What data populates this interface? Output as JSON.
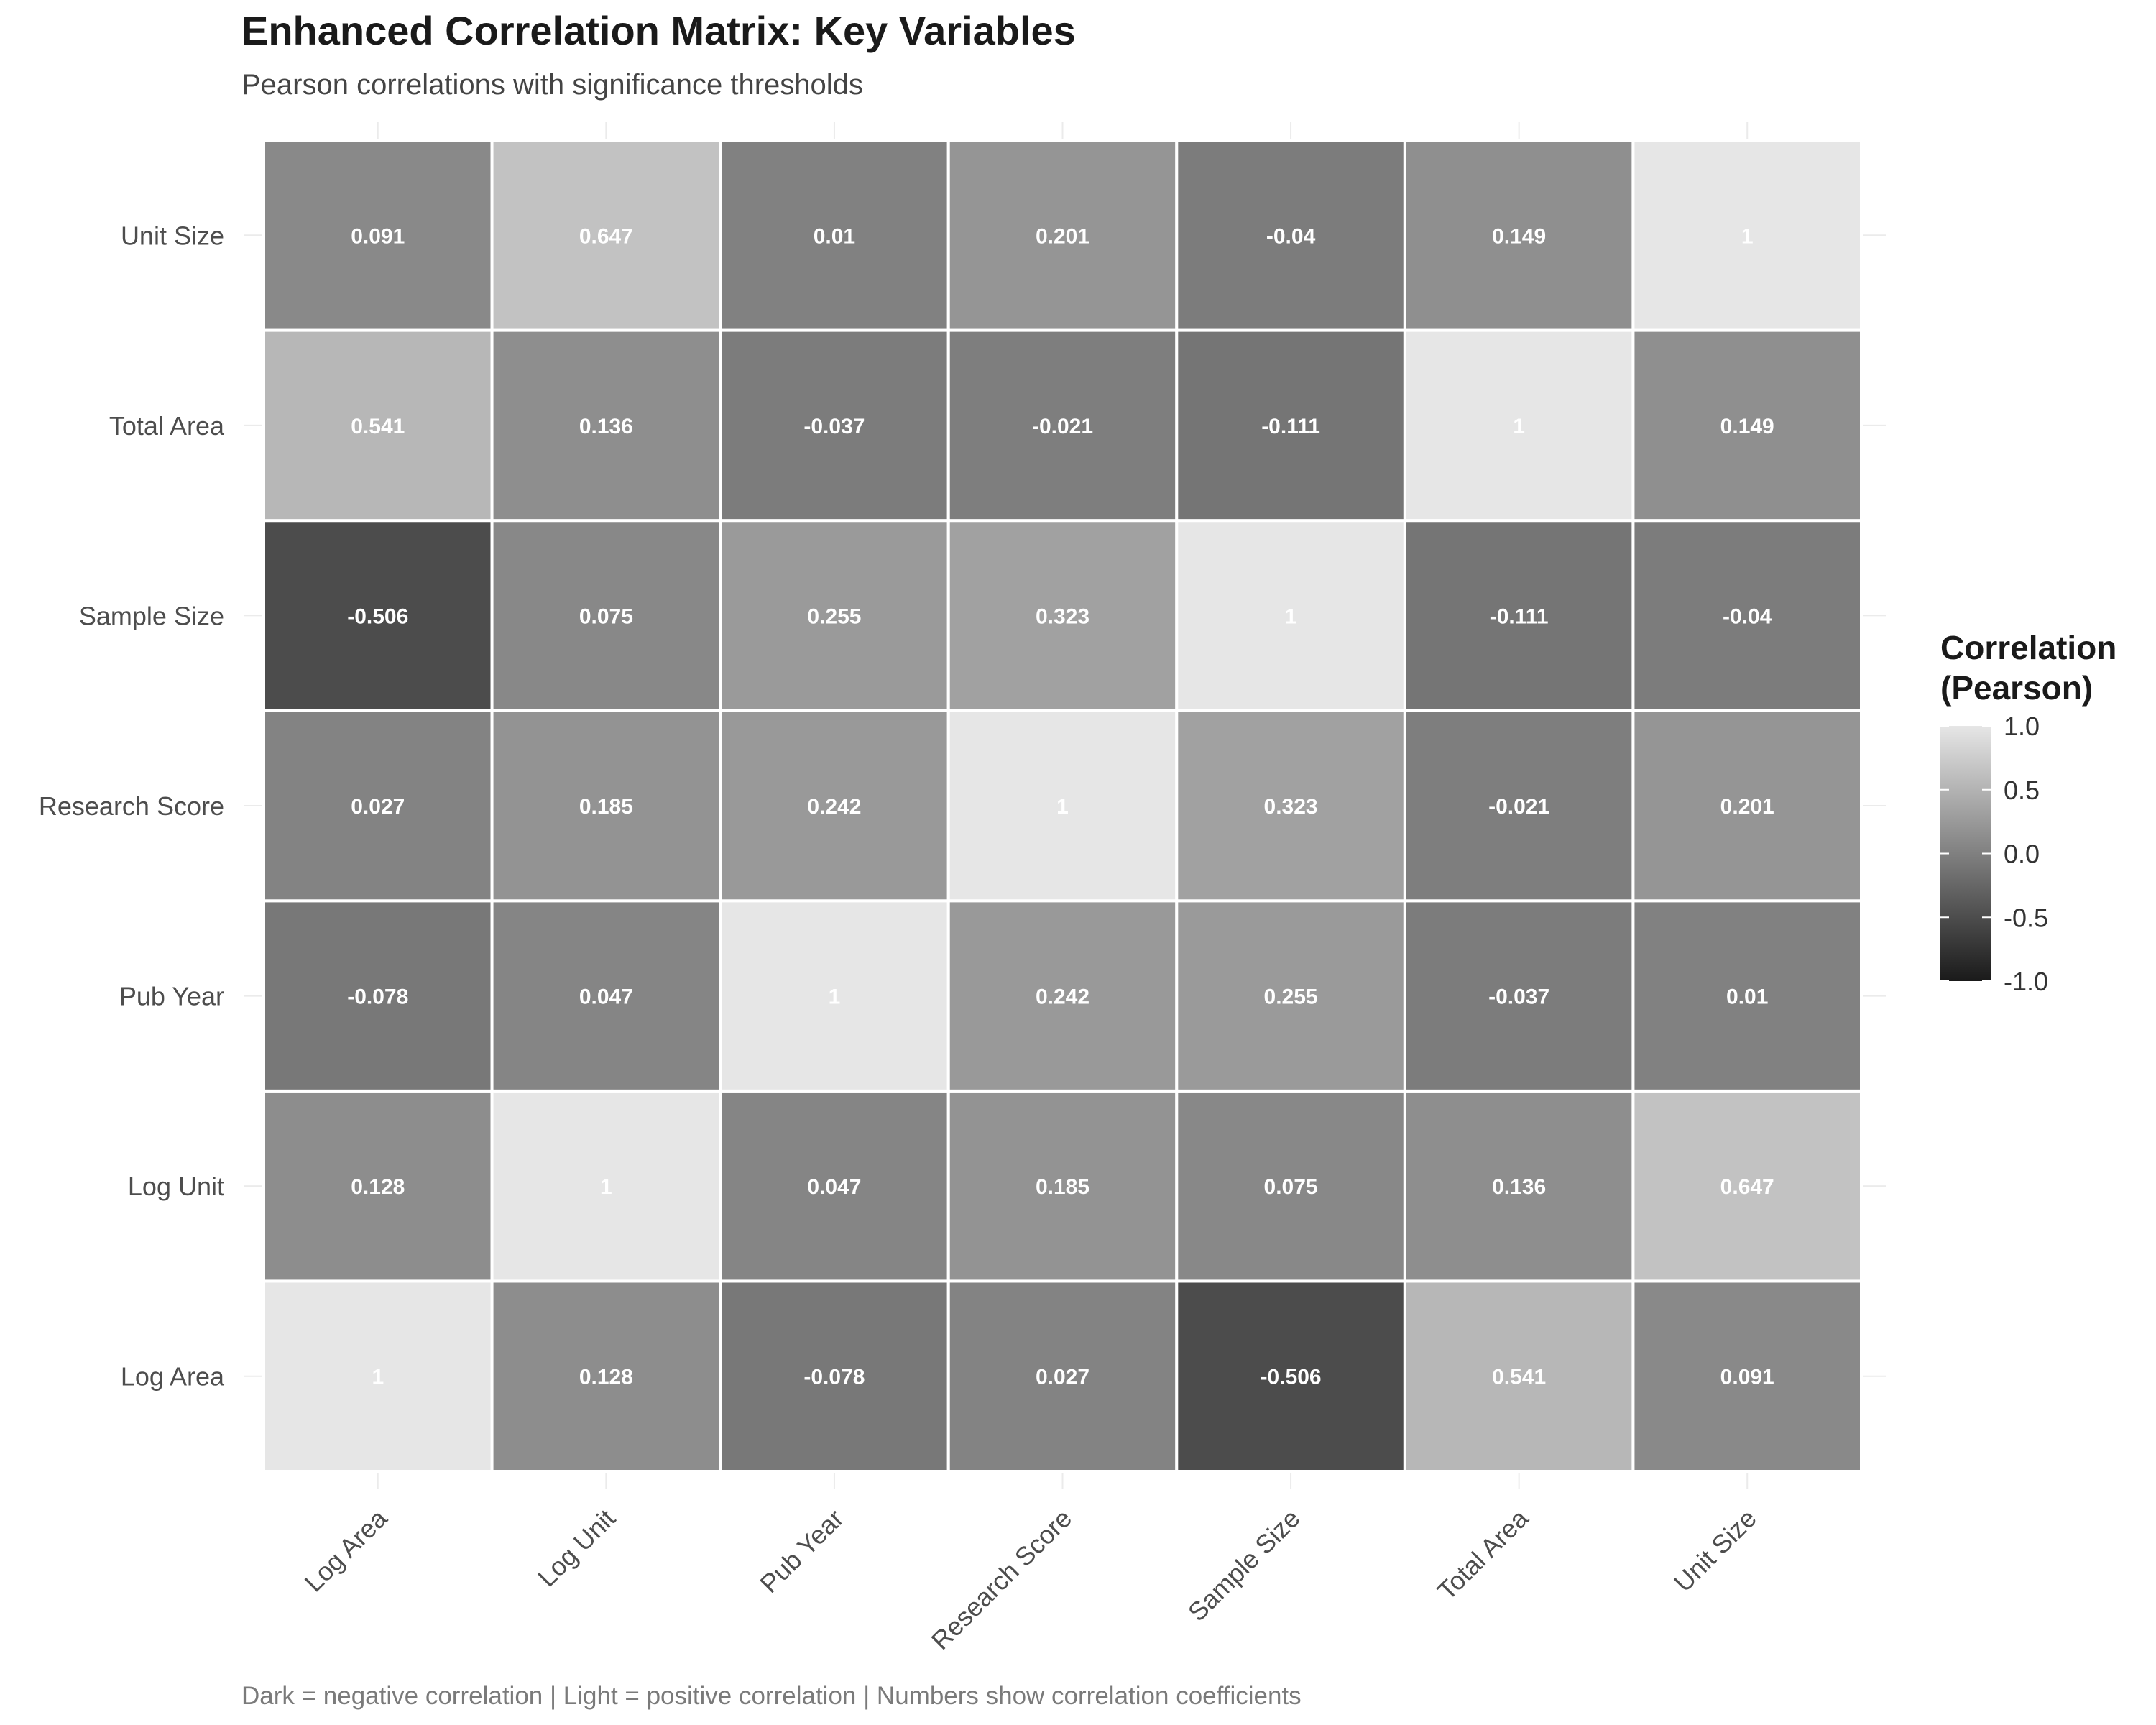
{
  "title": "Enhanced Correlation Matrix: Key Variables",
  "subtitle": "Pearson correlations with significance thresholds",
  "caption": "Dark = negative correlation | Light = positive correlation | Numbers show correlation coefficients",
  "chart_data": {
    "type": "heatmap",
    "x_categories": [
      "Log Area",
      "Log Unit",
      "Pub Year",
      "Research Score",
      "Sample Size",
      "Total Area",
      "Unit Size"
    ],
    "y_categories": [
      "Log Area",
      "Log Unit",
      "Pub Year",
      "Research Score",
      "Sample Size",
      "Total Area",
      "Unit Size"
    ],
    "labels": {
      "Log Area": [
        "1",
        "0.128",
        "-0.078",
        "0.027",
        "-0.506",
        "0.541",
        "0.091"
      ],
      "Log Unit": [
        "0.128",
        "1",
        "0.047",
        "0.185",
        "0.075",
        "0.136",
        "0.647"
      ],
      "Pub Year": [
        "-0.078",
        "0.047",
        "1",
        "0.242",
        "0.255",
        "-0.037",
        "0.01"
      ],
      "Research Score": [
        "0.027",
        "0.185",
        "0.242",
        "1",
        "0.323",
        "-0.021",
        "0.201"
      ],
      "Sample Size": [
        "-0.506",
        "0.075",
        "0.255",
        "0.323",
        "1",
        "-0.111",
        "-0.04"
      ],
      "Total Area": [
        "0.541",
        "0.136",
        "-0.037",
        "-0.021",
        "-0.111",
        "1",
        "0.149"
      ],
      "Unit Size": [
        "0.091",
        "0.647",
        "0.01",
        "0.201",
        "-0.04",
        "0.149",
        "1"
      ]
    },
    "values": [
      [
        1,
        0.128,
        -0.078,
        0.027,
        -0.506,
        0.541,
        0.091
      ],
      [
        0.128,
        1,
        0.047,
        0.185,
        0.075,
        0.136,
        0.647
      ],
      [
        -0.078,
        0.047,
        1,
        0.242,
        0.255,
        -0.037,
        0.01
      ],
      [
        0.027,
        0.185,
        0.242,
        1,
        0.323,
        -0.021,
        0.201
      ],
      [
        -0.506,
        0.075,
        0.255,
        0.323,
        1,
        -0.111,
        -0.04
      ],
      [
        0.541,
        0.136,
        -0.037,
        -0.021,
        -0.111,
        1,
        0.149
      ],
      [
        0.091,
        0.647,
        0.01,
        0.201,
        -0.04,
        0.149,
        1
      ]
    ],
    "legend": {
      "title_line1": "Correlation",
      "title_line2": "(Pearson)",
      "ticks": [
        "1.0",
        "0.5",
        "0.0",
        "-0.5",
        "-1.0"
      ],
      "tick_values": [
        1.0,
        0.5,
        0.0,
        -0.5,
        -1.0
      ],
      "range": [
        -1,
        1
      ],
      "low_color": "#1a1a1a",
      "high_color": "#e6e6e6",
      "placement": "right"
    },
    "grid": true,
    "cell_text_color": "#ffffff"
  }
}
